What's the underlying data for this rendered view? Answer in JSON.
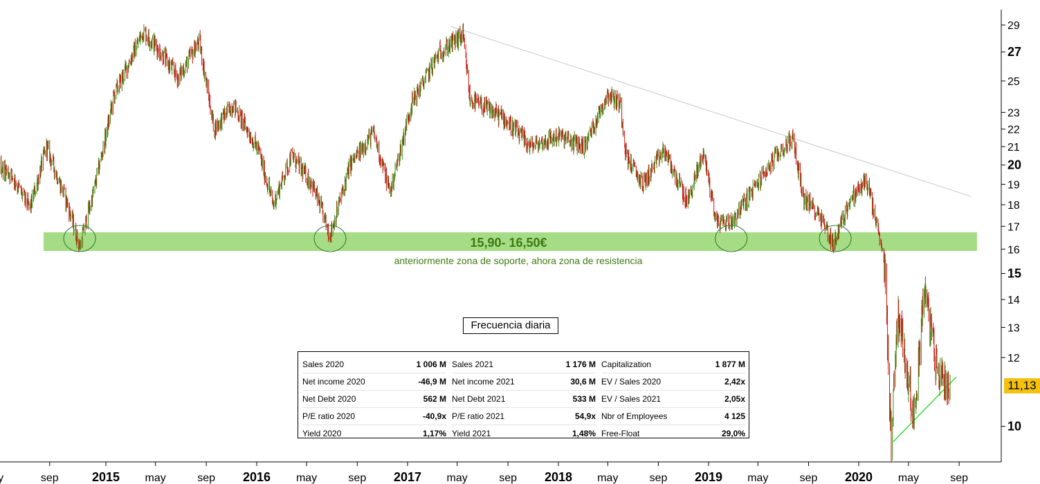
{
  "chart_data": {
    "type": "candlestick",
    "frequency_label": "Frecuencia diaria",
    "y_scale": "log",
    "y_ticks": [
      {
        "value": 10,
        "label": "10",
        "bold": true
      },
      {
        "value": 12,
        "label": "12",
        "bold": false
      },
      {
        "value": 13,
        "label": "13",
        "bold": false
      },
      {
        "value": 14,
        "label": "14",
        "bold": false
      },
      {
        "value": 15,
        "label": "15",
        "bold": true
      },
      {
        "value": 16,
        "label": "16",
        "bold": false
      },
      {
        "value": 17,
        "label": "17",
        "bold": false
      },
      {
        "value": 18,
        "label": "18",
        "bold": false
      },
      {
        "value": 19,
        "label": "19",
        "bold": false
      },
      {
        "value": 20,
        "label": "20",
        "bold": true
      },
      {
        "value": 21,
        "label": "21",
        "bold": false
      },
      {
        "value": 22,
        "label": "22",
        "bold": false
      },
      {
        "value": 23,
        "label": "23",
        "bold": false
      },
      {
        "value": 25,
        "label": "25",
        "bold": false
      },
      {
        "value": 27,
        "label": "27",
        "bold": true
      },
      {
        "value": 29,
        "label": "29",
        "bold": false
      }
    ],
    "x_ticks": [
      {
        "date": "2014-05-01",
        "label": "may",
        "bold": false
      },
      {
        "date": "2014-09-01",
        "label": "sep",
        "bold": false
      },
      {
        "date": "2015-01-01",
        "label": "2015",
        "bold": true
      },
      {
        "date": "2015-05-01",
        "label": "may",
        "bold": false
      },
      {
        "date": "2015-09-01",
        "label": "sep",
        "bold": false
      },
      {
        "date": "2016-01-01",
        "label": "2016",
        "bold": true
      },
      {
        "date": "2016-05-01",
        "label": "may",
        "bold": false
      },
      {
        "date": "2016-09-01",
        "label": "sep",
        "bold": false
      },
      {
        "date": "2017-01-01",
        "label": "2017",
        "bold": true
      },
      {
        "date": "2017-05-01",
        "label": "may",
        "bold": false
      },
      {
        "date": "2017-09-01",
        "label": "sep",
        "bold": false
      },
      {
        "date": "2018-01-01",
        "label": "2018",
        "bold": true
      },
      {
        "date": "2018-05-01",
        "label": "may",
        "bold": false
      },
      {
        "date": "2018-09-01",
        "label": "sep",
        "bold": false
      },
      {
        "date": "2019-01-01",
        "label": "2019",
        "bold": true
      },
      {
        "date": "2019-05-01",
        "label": "may",
        "bold": false
      },
      {
        "date": "2019-09-01",
        "label": "sep",
        "bold": false
      },
      {
        "date": "2020-01-01",
        "label": "2020",
        "bold": true
      },
      {
        "date": "2020-05-01",
        "label": "may",
        "bold": false
      },
      {
        "date": "2020-09-01",
        "label": "sep",
        "bold": false
      }
    ],
    "x_range": [
      "2014-04-01",
      "2020-10-01"
    ],
    "y_range": [
      9.1,
      30.2
    ],
    "price_path": [
      {
        "date": "2014-04-01",
        "value": 20.8
      },
      {
        "date": "2014-06-10",
        "value": 19.5
      },
      {
        "date": "2014-07-20",
        "value": 17.8
      },
      {
        "date": "2014-08-25",
        "value": 21.0
      },
      {
        "date": "2014-10-10",
        "value": 18.0
      },
      {
        "date": "2014-11-05",
        "value": 16.1
      },
      {
        "date": "2014-12-05",
        "value": 18.6
      },
      {
        "date": "2015-01-20",
        "value": 24.0
      },
      {
        "date": "2015-04-01",
        "value": 28.5
      },
      {
        "date": "2015-05-01",
        "value": 27.5
      },
      {
        "date": "2015-06-25",
        "value": 25.2
      },
      {
        "date": "2015-08-15",
        "value": 27.8
      },
      {
        "date": "2015-09-20",
        "value": 22.0
      },
      {
        "date": "2015-11-05",
        "value": 23.5
      },
      {
        "date": "2016-01-05",
        "value": 20.8
      },
      {
        "date": "2016-02-10",
        "value": 18.0
      },
      {
        "date": "2016-03-25",
        "value": 20.5
      },
      {
        "date": "2016-05-15",
        "value": 19.0
      },
      {
        "date": "2016-06-27",
        "value": 16.6
      },
      {
        "date": "2016-08-15",
        "value": 20.0
      },
      {
        "date": "2016-10-10",
        "value": 21.8
      },
      {
        "date": "2016-11-20",
        "value": 18.6
      },
      {
        "date": "2017-01-10",
        "value": 23.5
      },
      {
        "date": "2017-03-20",
        "value": 27.0
      },
      {
        "date": "2017-05-15",
        "value": 28.2
      },
      {
        "date": "2017-06-01",
        "value": 23.8
      },
      {
        "date": "2017-08-20",
        "value": 22.7
      },
      {
        "date": "2017-10-25",
        "value": 21.0
      },
      {
        "date": "2018-01-01",
        "value": 21.6
      },
      {
        "date": "2018-03-05",
        "value": 21.0
      },
      {
        "date": "2018-05-01",
        "value": 24.2
      },
      {
        "date": "2018-06-01",
        "value": 23.5
      },
      {
        "date": "2018-06-15",
        "value": 20.5
      },
      {
        "date": "2018-07-25",
        "value": 19.0
      },
      {
        "date": "2018-09-15",
        "value": 20.8
      },
      {
        "date": "2018-11-10",
        "value": 18.1
      },
      {
        "date": "2018-12-20",
        "value": 20.7
      },
      {
        "date": "2019-01-20",
        "value": 17.2
      },
      {
        "date": "2019-02-25",
        "value": 17.2
      },
      {
        "date": "2019-04-15",
        "value": 18.6
      },
      {
        "date": "2019-06-15",
        "value": 20.5
      },
      {
        "date": "2019-07-25",
        "value": 21.5
      },
      {
        "date": "2019-08-20",
        "value": 18.3
      },
      {
        "date": "2019-09-30",
        "value": 17.5
      },
      {
        "date": "2019-11-01",
        "value": 16.2
      },
      {
        "date": "2019-12-10",
        "value": 18.2
      },
      {
        "date": "2020-01-20",
        "value": 19.2
      },
      {
        "date": "2020-02-20",
        "value": 16.5
      },
      {
        "date": "2020-03-05",
        "value": 15.2
      },
      {
        "date": "2020-03-20",
        "value": 9.6
      },
      {
        "date": "2020-04-05",
        "value": 13.7
      },
      {
        "date": "2020-05-15",
        "value": 10.2
      },
      {
        "date": "2020-06-08",
        "value": 14.5
      },
      {
        "date": "2020-07-10",
        "value": 11.6
      },
      {
        "date": "2020-08-10",
        "value": 11.13
      }
    ],
    "support_zone": {
      "low": 15.9,
      "high": 16.5,
      "label": "15,90- 16,50€",
      "note": "anteriormente zona de soporte, ahora zona de resistencia"
    },
    "support_touches": [
      {
        "date": "2014-11-05",
        "value": 16.25
      },
      {
        "date": "2016-06-27",
        "value": 16.3
      },
      {
        "date": "2019-02-25",
        "value": 16.4
      },
      {
        "date": "2019-11-05",
        "value": 16.2
      }
    ],
    "downtrend_line": {
      "start": {
        "date": "2017-04-15",
        "value": 28.9
      },
      "end": {
        "date": "2020-09-30",
        "value": 18.4
      },
      "color": "#c8c8c8"
    },
    "uptrend_line": {
      "start": {
        "date": "2020-03-25",
        "value": 9.6
      },
      "end": {
        "date": "2020-08-25",
        "value": 11.4
      },
      "color": "#33dd33"
    },
    "last_price": {
      "value": 11.13,
      "label": "11,13"
    },
    "colors": {
      "up": "#3c8c10",
      "down": "#cc1111",
      "band": "#a6dc86",
      "circle": "#2e7d2e",
      "band_text": "#3d7a10",
      "price_tag": "#f4c20d"
    }
  },
  "stats": {
    "columns": [
      [
        {
          "label": "Sales 2020",
          "value": "1 006 M"
        },
        {
          "label": "Net income 2020",
          "value": "-46,9 M"
        },
        {
          "label": "Net Debt 2020",
          "value": "562 M"
        },
        {
          "label": "P/E ratio 2020",
          "value": "-40,9x"
        },
        {
          "label": "Yield 2020",
          "value": "1,17%"
        }
      ],
      [
        {
          "label": "Sales 2021",
          "value": "1 176 M"
        },
        {
          "label": "Net income 2021",
          "value": "30,6 M"
        },
        {
          "label": "Net Debt 2021",
          "value": "533 M"
        },
        {
          "label": "P/E ratio 2021",
          "value": "54,9x"
        },
        {
          "label": "Yield 2021",
          "value": "1,48%"
        }
      ],
      [
        {
          "label": "Capitalization",
          "value": "1 877 M"
        },
        {
          "label": "EV / Sales 2020",
          "value": "2,42x"
        },
        {
          "label": "EV / Sales 2021",
          "value": "2,05x"
        },
        {
          "label": "Nbr of Employees",
          "value": "4 125"
        },
        {
          "label": "Free-Float",
          "value": "29,0%"
        }
      ]
    ]
  }
}
